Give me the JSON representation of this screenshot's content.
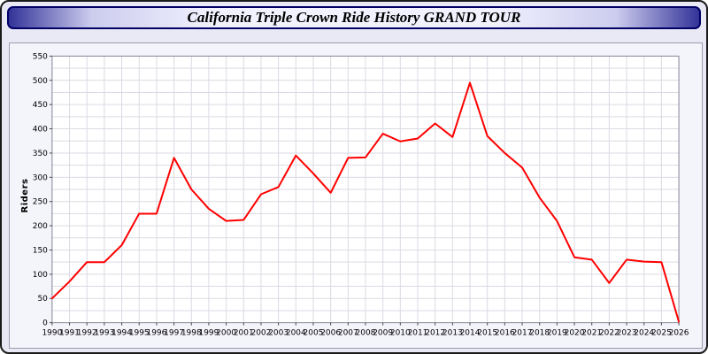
{
  "header": {
    "title": "California Triple Crown Ride History GRAND TOUR"
  },
  "chart_data": {
    "type": "line",
    "title": "California Triple Crown Ride History GRAND TOUR",
    "xlabel": "",
    "ylabel": "Riders",
    "ylim": [
      0,
      550
    ],
    "ytick_step": 50,
    "ytick_minor": 25,
    "grid": true,
    "legend_position": "none",
    "x": [
      1990,
      1991,
      1992,
      1993,
      1994,
      1995,
      1996,
      1997,
      1998,
      1999,
      2000,
      2001,
      2002,
      2003,
      2004,
      2005,
      2006,
      2007,
      2008,
      2009,
      2010,
      2011,
      2012,
      2013,
      2014,
      2015,
      2016,
      2017,
      2018,
      2019,
      2020,
      2021,
      2022,
      2023,
      2024,
      2025,
      2026
    ],
    "series": [
      {
        "name": "Riders",
        "color": "#ff0000",
        "values": [
          50,
          85,
          125,
          125,
          160,
          225,
          225,
          340,
          275,
          235,
          210,
          212,
          265,
          280,
          345,
          308,
          268,
          340,
          341,
          390,
          374,
          380,
          411,
          383,
          495,
          385,
          350,
          320,
          258,
          210,
          135,
          130,
          82,
          130,
          126,
          125,
          2
        ]
      }
    ]
  }
}
